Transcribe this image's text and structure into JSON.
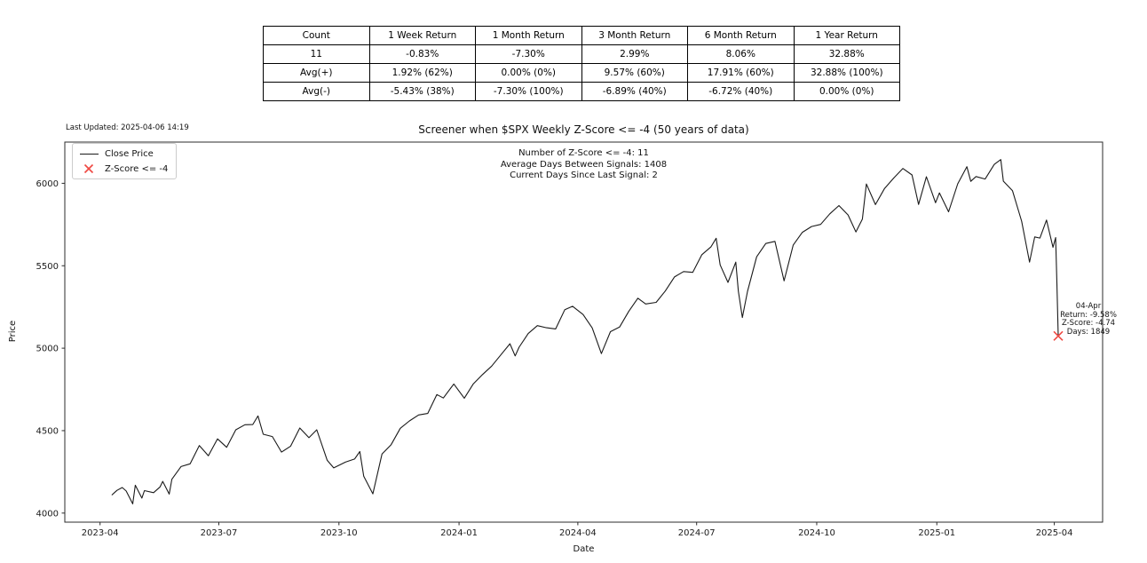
{
  "last_updated": "Last Updated: 2025-04-06 14:19",
  "table": {
    "headers": [
      "Count",
      "1 Week Return",
      "1 Month Return",
      "3 Month Return",
      "6 Month Return",
      "1 Year Return"
    ],
    "rows": [
      [
        "11",
        "-0.83%",
        "-7.30%",
        "2.99%",
        "8.06%",
        "32.88%"
      ],
      [
        "Avg(+)",
        "1.92% (62%)",
        "0.00% (0%)",
        "9.57% (60%)",
        "17.91% (60%)",
        "32.88% (100%)"
      ],
      [
        "Avg(-)",
        "-5.43% (38%)",
        "-7.30% (100%)",
        "-6.89% (40%)",
        "-6.72% (40%)",
        "0.00% (0%)"
      ]
    ]
  },
  "chart_data": {
    "type": "line",
    "title": "Screener when $SPX Weekly Z-Score <= -4 (50 years of data)",
    "xlabel": "Date",
    "ylabel": "Price",
    "grid": false,
    "legend_position": "upper-left",
    "xlim": [
      "2023-03-05",
      "2025-05-08"
    ],
    "ylim": [
      3945,
      6250
    ],
    "yticks": [
      4000,
      4500,
      5000,
      5500,
      6000
    ],
    "xticks": [
      {
        "label": "2023-04",
        "date": "2023-04-01"
      },
      {
        "label": "2023-07",
        "date": "2023-07-01"
      },
      {
        "label": "2023-10",
        "date": "2023-10-01"
      },
      {
        "label": "2024-01",
        "date": "2024-01-01"
      },
      {
        "label": "2024-04",
        "date": "2024-04-01"
      },
      {
        "label": "2024-07",
        "date": "2024-07-01"
      },
      {
        "label": "2024-10",
        "date": "2024-10-01"
      },
      {
        "label": "2025-01",
        "date": "2025-01-01"
      },
      {
        "label": "2025-04",
        "date": "2025-04-01"
      }
    ],
    "stats_annotation": [
      "Number of Z-Score <= -4: 11",
      "Average Days Between Signals: 1408",
      "Current Days Since Last Signal: 2"
    ],
    "legend": [
      {
        "label": "Close Price",
        "marker": "line",
        "color": "#1a1a1a"
      },
      {
        "label": "Z-Score <= -4",
        "marker": "x",
        "color": "#ef4a44"
      }
    ],
    "series": [
      {
        "name": "Close Price",
        "color": "#1a1a1a",
        "points": [
          [
            "2023-04-10",
            4109
          ],
          [
            "2023-04-14",
            4138
          ],
          [
            "2023-04-18",
            4155
          ],
          [
            "2023-04-21",
            4134
          ],
          [
            "2023-04-26",
            4056
          ],
          [
            "2023-04-28",
            4169
          ],
          [
            "2023-05-03",
            4091
          ],
          [
            "2023-05-05",
            4136
          ],
          [
            "2023-05-12",
            4124
          ],
          [
            "2023-05-17",
            4159
          ],
          [
            "2023-05-19",
            4192
          ],
          [
            "2023-05-24",
            4115
          ],
          [
            "2023-05-26",
            4205
          ],
          [
            "2023-06-02",
            4282
          ],
          [
            "2023-06-09",
            4299
          ],
          [
            "2023-06-16",
            4410
          ],
          [
            "2023-06-23",
            4348
          ],
          [
            "2023-06-30",
            4450
          ],
          [
            "2023-07-07",
            4399
          ],
          [
            "2023-07-14",
            4505
          ],
          [
            "2023-07-21",
            4536
          ],
          [
            "2023-07-27",
            4537
          ],
          [
            "2023-07-31",
            4589
          ],
          [
            "2023-08-04",
            4478
          ],
          [
            "2023-08-11",
            4464
          ],
          [
            "2023-08-18",
            4370
          ],
          [
            "2023-08-25",
            4406
          ],
          [
            "2023-09-01",
            4516
          ],
          [
            "2023-09-08",
            4457
          ],
          [
            "2023-09-14",
            4505
          ],
          [
            "2023-09-22",
            4320
          ],
          [
            "2023-09-27",
            4274
          ],
          [
            "2023-10-06",
            4309
          ],
          [
            "2023-10-13",
            4328
          ],
          [
            "2023-10-17",
            4373
          ],
          [
            "2023-10-20",
            4224
          ],
          [
            "2023-10-27",
            4117
          ],
          [
            "2023-11-03",
            4358
          ],
          [
            "2023-11-10",
            4415
          ],
          [
            "2023-11-17",
            4514
          ],
          [
            "2023-11-24",
            4559
          ],
          [
            "2023-12-01",
            4595
          ],
          [
            "2023-12-08",
            4604
          ],
          [
            "2023-12-15",
            4719
          ],
          [
            "2023-12-20",
            4698
          ],
          [
            "2023-12-28",
            4783
          ],
          [
            "2024-01-05",
            4697
          ],
          [
            "2024-01-12",
            4784
          ],
          [
            "2024-01-19",
            4840
          ],
          [
            "2024-01-26",
            4891
          ],
          [
            "2024-02-02",
            4959
          ],
          [
            "2024-02-09",
            5027
          ],
          [
            "2024-02-13",
            4953
          ],
          [
            "2024-02-16",
            5006
          ],
          [
            "2024-02-23",
            5089
          ],
          [
            "2024-03-01",
            5137
          ],
          [
            "2024-03-08",
            5124
          ],
          [
            "2024-03-15",
            5117
          ],
          [
            "2024-03-22",
            5234
          ],
          [
            "2024-03-28",
            5254
          ],
          [
            "2024-04-05",
            5204
          ],
          [
            "2024-04-12",
            5123
          ],
          [
            "2024-04-19",
            4967
          ],
          [
            "2024-04-26",
            5100
          ],
          [
            "2024-05-03",
            5128
          ],
          [
            "2024-05-10",
            5223
          ],
          [
            "2024-05-17",
            5303
          ],
          [
            "2024-05-23",
            5268
          ],
          [
            "2024-05-31",
            5278
          ],
          [
            "2024-06-07",
            5347
          ],
          [
            "2024-06-14",
            5432
          ],
          [
            "2024-06-21",
            5465
          ],
          [
            "2024-06-28",
            5460
          ],
          [
            "2024-07-05",
            5567
          ],
          [
            "2024-07-12",
            5615
          ],
          [
            "2024-07-16",
            5667
          ],
          [
            "2024-07-19",
            5505
          ],
          [
            "2024-07-25",
            5399
          ],
          [
            "2024-07-31",
            5522
          ],
          [
            "2024-08-02",
            5346
          ],
          [
            "2024-08-05",
            5186
          ],
          [
            "2024-08-09",
            5344
          ],
          [
            "2024-08-16",
            5554
          ],
          [
            "2024-08-23",
            5635
          ],
          [
            "2024-08-30",
            5648
          ],
          [
            "2024-09-06",
            5408
          ],
          [
            "2024-09-13",
            5626
          ],
          [
            "2024-09-20",
            5703
          ],
          [
            "2024-09-27",
            5738
          ],
          [
            "2024-10-04",
            5751
          ],
          [
            "2024-10-11",
            5815
          ],
          [
            "2024-10-18",
            5865
          ],
          [
            "2024-10-25",
            5808
          ],
          [
            "2024-10-31",
            5705
          ],
          [
            "2024-11-05",
            5783
          ],
          [
            "2024-11-08",
            5996
          ],
          [
            "2024-11-15",
            5871
          ],
          [
            "2024-11-22",
            5969
          ],
          [
            "2024-11-29",
            6032
          ],
          [
            "2024-12-06",
            6090
          ],
          [
            "2024-12-13",
            6051
          ],
          [
            "2024-12-18",
            5872
          ],
          [
            "2024-12-24",
            6040
          ],
          [
            "2024-12-31",
            5882
          ],
          [
            "2025-01-03",
            5942
          ],
          [
            "2025-01-10",
            5827
          ],
          [
            "2025-01-17",
            5997
          ],
          [
            "2025-01-24",
            6101
          ],
          [
            "2025-01-27",
            6012
          ],
          [
            "2025-01-31",
            6041
          ],
          [
            "2025-02-07",
            6026
          ],
          [
            "2025-02-14",
            6115
          ],
          [
            "2025-02-19",
            6144
          ],
          [
            "2025-02-21",
            6013
          ],
          [
            "2025-02-28",
            5955
          ],
          [
            "2025-03-07",
            5770
          ],
          [
            "2025-03-13",
            5522
          ],
          [
            "2025-03-17",
            5675
          ],
          [
            "2025-03-21",
            5668
          ],
          [
            "2025-03-26",
            5777
          ],
          [
            "2025-03-31",
            5612
          ],
          [
            "2025-04-02",
            5671
          ],
          [
            "2025-04-03",
            5396
          ],
          [
            "2025-04-04",
            5074
          ]
        ]
      }
    ],
    "signal_marker": {
      "date": "2025-04-04",
      "price": 5074,
      "color": "#ef4a44",
      "annotation": [
        "04-Apr",
        "Return: -9.58%",
        "Z-Score: -4.74",
        "Days: 1849"
      ]
    }
  },
  "colors": {
    "axis": "#2b2b2b",
    "text": "#111111"
  }
}
